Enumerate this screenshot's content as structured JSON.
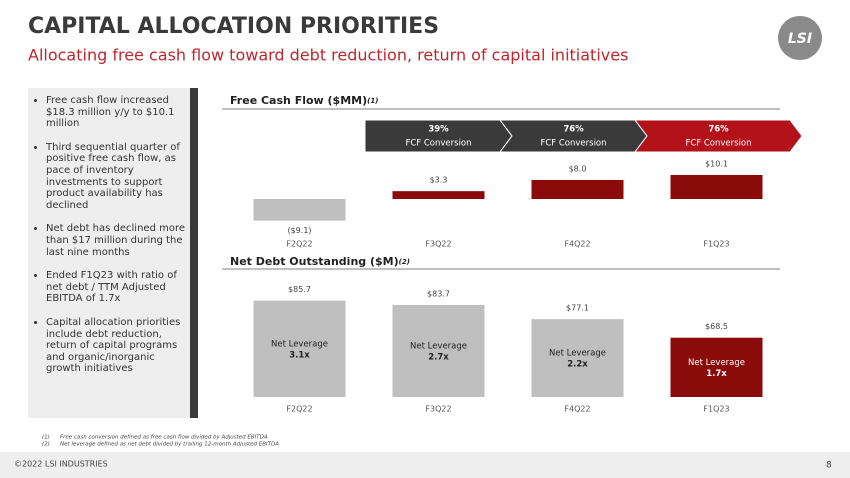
{
  "header": {
    "title": "CAPITAL ALLOCATION PRIORITIES",
    "subtitle": "Allocating free cash flow toward debt reduction, return of capital initiatives",
    "logo": "LSI"
  },
  "bullets": [
    "Free cash flow increased $18.3 million y/y to $10.1 million",
    "Third sequential quarter of positive free cash flow, as pace of inventory investments to support product availability has declined",
    "Net debt has declined more than $17 million during the last nine months",
    "Ended F1Q23 with ratio of net debt / TTM Adjusted EBITDA of 1.7x",
    "Capital allocation priorities include debt reduction, return of capital programs and organic/inorganic growth initiatives"
  ],
  "chart_data": [
    {
      "type": "bar",
      "title": "Free Cash Flow ($MM)",
      "title_note": "(1)",
      "categories": [
        "F2Q22",
        "F3Q22",
        "F4Q22",
        "F1Q23"
      ],
      "values": [
        -9.1,
        3.3,
        8.0,
        10.1
      ],
      "value_labels": [
        "($9.1)",
        "$3.3",
        "$8.0",
        "$10.1"
      ],
      "colors": [
        "#bfbfbf",
        "#8b0a0a",
        "#8b0a0a",
        "#8b0a0a"
      ],
      "ylim": [
        -12,
        12
      ],
      "conversions": [
        {
          "label": "39%",
          "caption": "FCF Conversion",
          "color": "#3a3a3a"
        },
        {
          "label": "76%",
          "caption": "FCF Conversion",
          "color": "#3a3a3a"
        },
        {
          "label": "76%",
          "caption": "FCF Conversion",
          "color": "#b3121b"
        }
      ]
    },
    {
      "type": "bar",
      "title": "Net Debt Outstanding ($M)",
      "title_note": "(2)",
      "categories": [
        "F2Q22",
        "F3Q22",
        "F4Q22",
        "F1Q23"
      ],
      "values": [
        85.7,
        83.7,
        77.1,
        68.5
      ],
      "value_labels": [
        "$85.7",
        "$83.7",
        "$77.1",
        "$68.5"
      ],
      "colors": [
        "#bfbfbf",
        "#bfbfbf",
        "#bfbfbf",
        "#8b0a0a"
      ],
      "ylim": [
        41,
        86
      ],
      "inner_labels": [
        {
          "text": "Net Leverage",
          "value": "3.1x"
        },
        {
          "text": "Net Leverage",
          "value": "2.7x"
        },
        {
          "text": "Net Leverage",
          "value": "2.2x"
        },
        {
          "text": "Net Leverage",
          "value": "1.7x"
        }
      ]
    }
  ],
  "footnotes": [
    {
      "marker": "(1)",
      "text": "Free cash conversion defined as free cash flow divided by Adjusted EBITDA"
    },
    {
      "marker": "(2)",
      "text": "Net leverage defined as net debt divided by trailing 12-month Adjusted EBITDA"
    }
  ],
  "footer": {
    "copyright": "©2022 LSI INDUSTRIES",
    "page": "8"
  }
}
